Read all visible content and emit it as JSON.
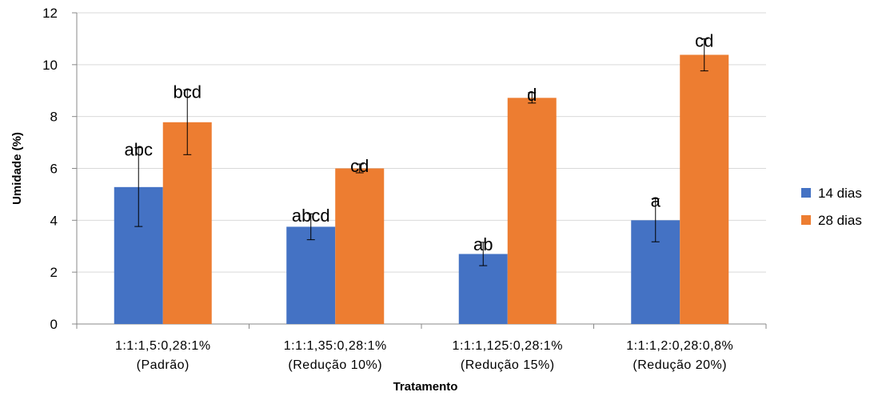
{
  "chart_data": {
    "type": "bar",
    "title": "",
    "xlabel": "Tratamento",
    "ylabel": "Umidade (%)",
    "ylim": [
      0,
      12
    ],
    "yticks": [
      0,
      2,
      4,
      6,
      8,
      10,
      12
    ],
    "grid": true,
    "legend": "right",
    "categories": [
      [
        "1:1:1,5:0,28:1%",
        "(Padrão)"
      ],
      [
        "1:1:1,35:0,28:1%",
        "(Redução 10%)"
      ],
      [
        "1:1:1,125:0,28:1%",
        "(Redução 15%)"
      ],
      [
        "1:1:1,2:0,28:0,8%",
        "(Redução 20%)"
      ]
    ],
    "series": [
      {
        "name": "14 dias",
        "color": "#4472C4",
        "values": [
          5.28,
          3.75,
          2.7,
          4.0
        ],
        "error": [
          1.52,
          0.5,
          0.45,
          0.83
        ],
        "labels": [
          "abc",
          "abcd",
          "ab",
          "a"
        ]
      },
      {
        "name": "28 dias",
        "color": "#ED7D31",
        "values": [
          7.78,
          6.0,
          8.72,
          10.38
        ],
        "error": [
          1.25,
          0.17,
          0.2,
          0.62
        ],
        "labels": [
          "bcd",
          "cd",
          "d",
          "cd"
        ]
      }
    ]
  }
}
